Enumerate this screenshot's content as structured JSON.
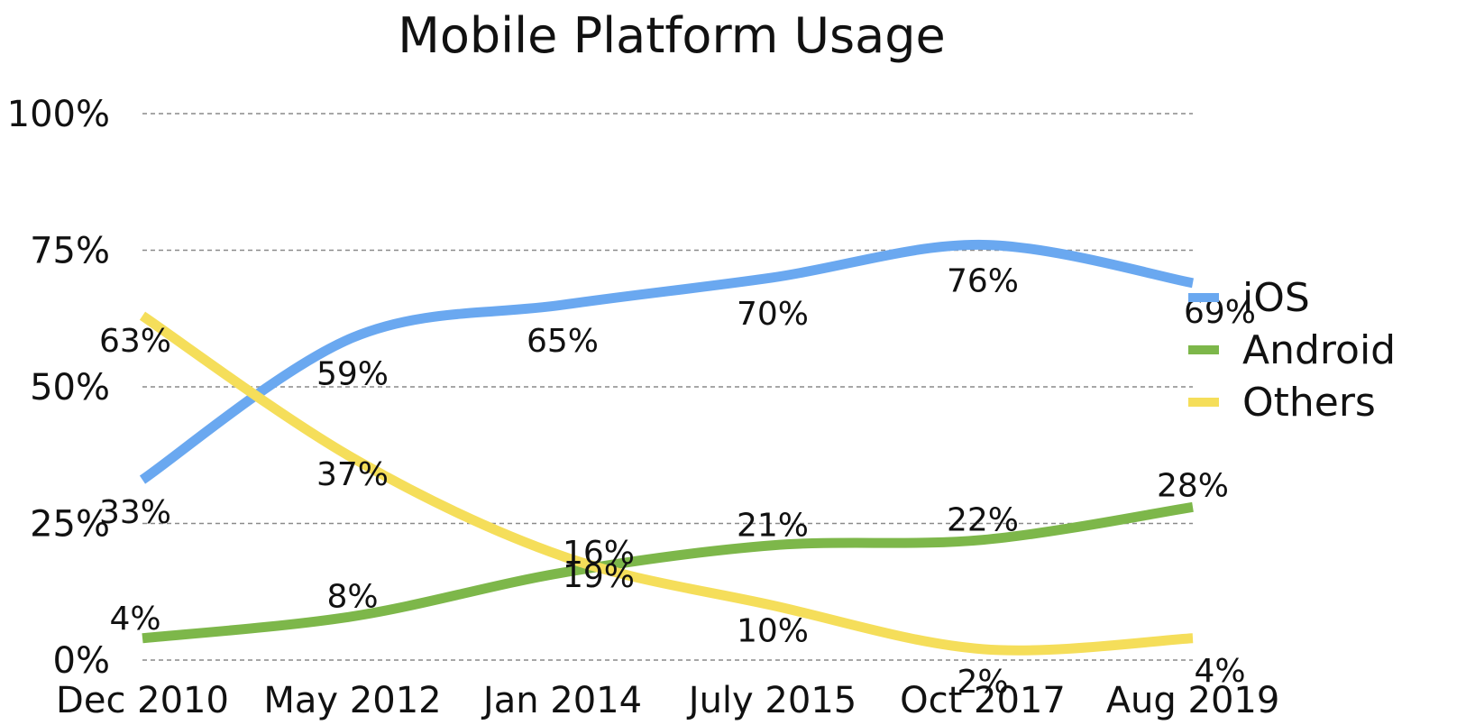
{
  "chart_data": {
    "type": "line",
    "title": "Mobile Platform Usage",
    "xlabel": "",
    "ylabel": "",
    "categories": [
      "Dec 2010",
      "May 2012",
      "Jan 2014",
      "July 2015",
      "Oct 2017",
      "Aug 2019"
    ],
    "y_ticks": [
      "0%",
      "25%",
      "50%",
      "75%",
      "100%"
    ],
    "ylim": [
      0,
      100
    ],
    "grid": true,
    "legend_position": "right",
    "series": [
      {
        "name": "iOS",
        "color": "#6aa8f0",
        "values": [
          33,
          59,
          65,
          70,
          76,
          69
        ],
        "labels": [
          "33%",
          "59%",
          "65%",
          "70%",
          "76%",
          "69%"
        ]
      },
      {
        "name": "Android",
        "color": "#7db74a",
        "values": [
          4,
          8,
          16,
          21,
          22,
          28
        ],
        "labels": [
          "4%",
          "8%",
          "16%",
          "21%",
          "22%",
          "28%"
        ]
      },
      {
        "name": "Others",
        "color": "#f5de5a",
        "values": [
          63,
          37,
          19,
          10,
          2,
          4
        ],
        "labels": [
          "63%",
          "37%",
          "19%",
          "10%",
          "2%",
          "4%"
        ]
      }
    ]
  }
}
